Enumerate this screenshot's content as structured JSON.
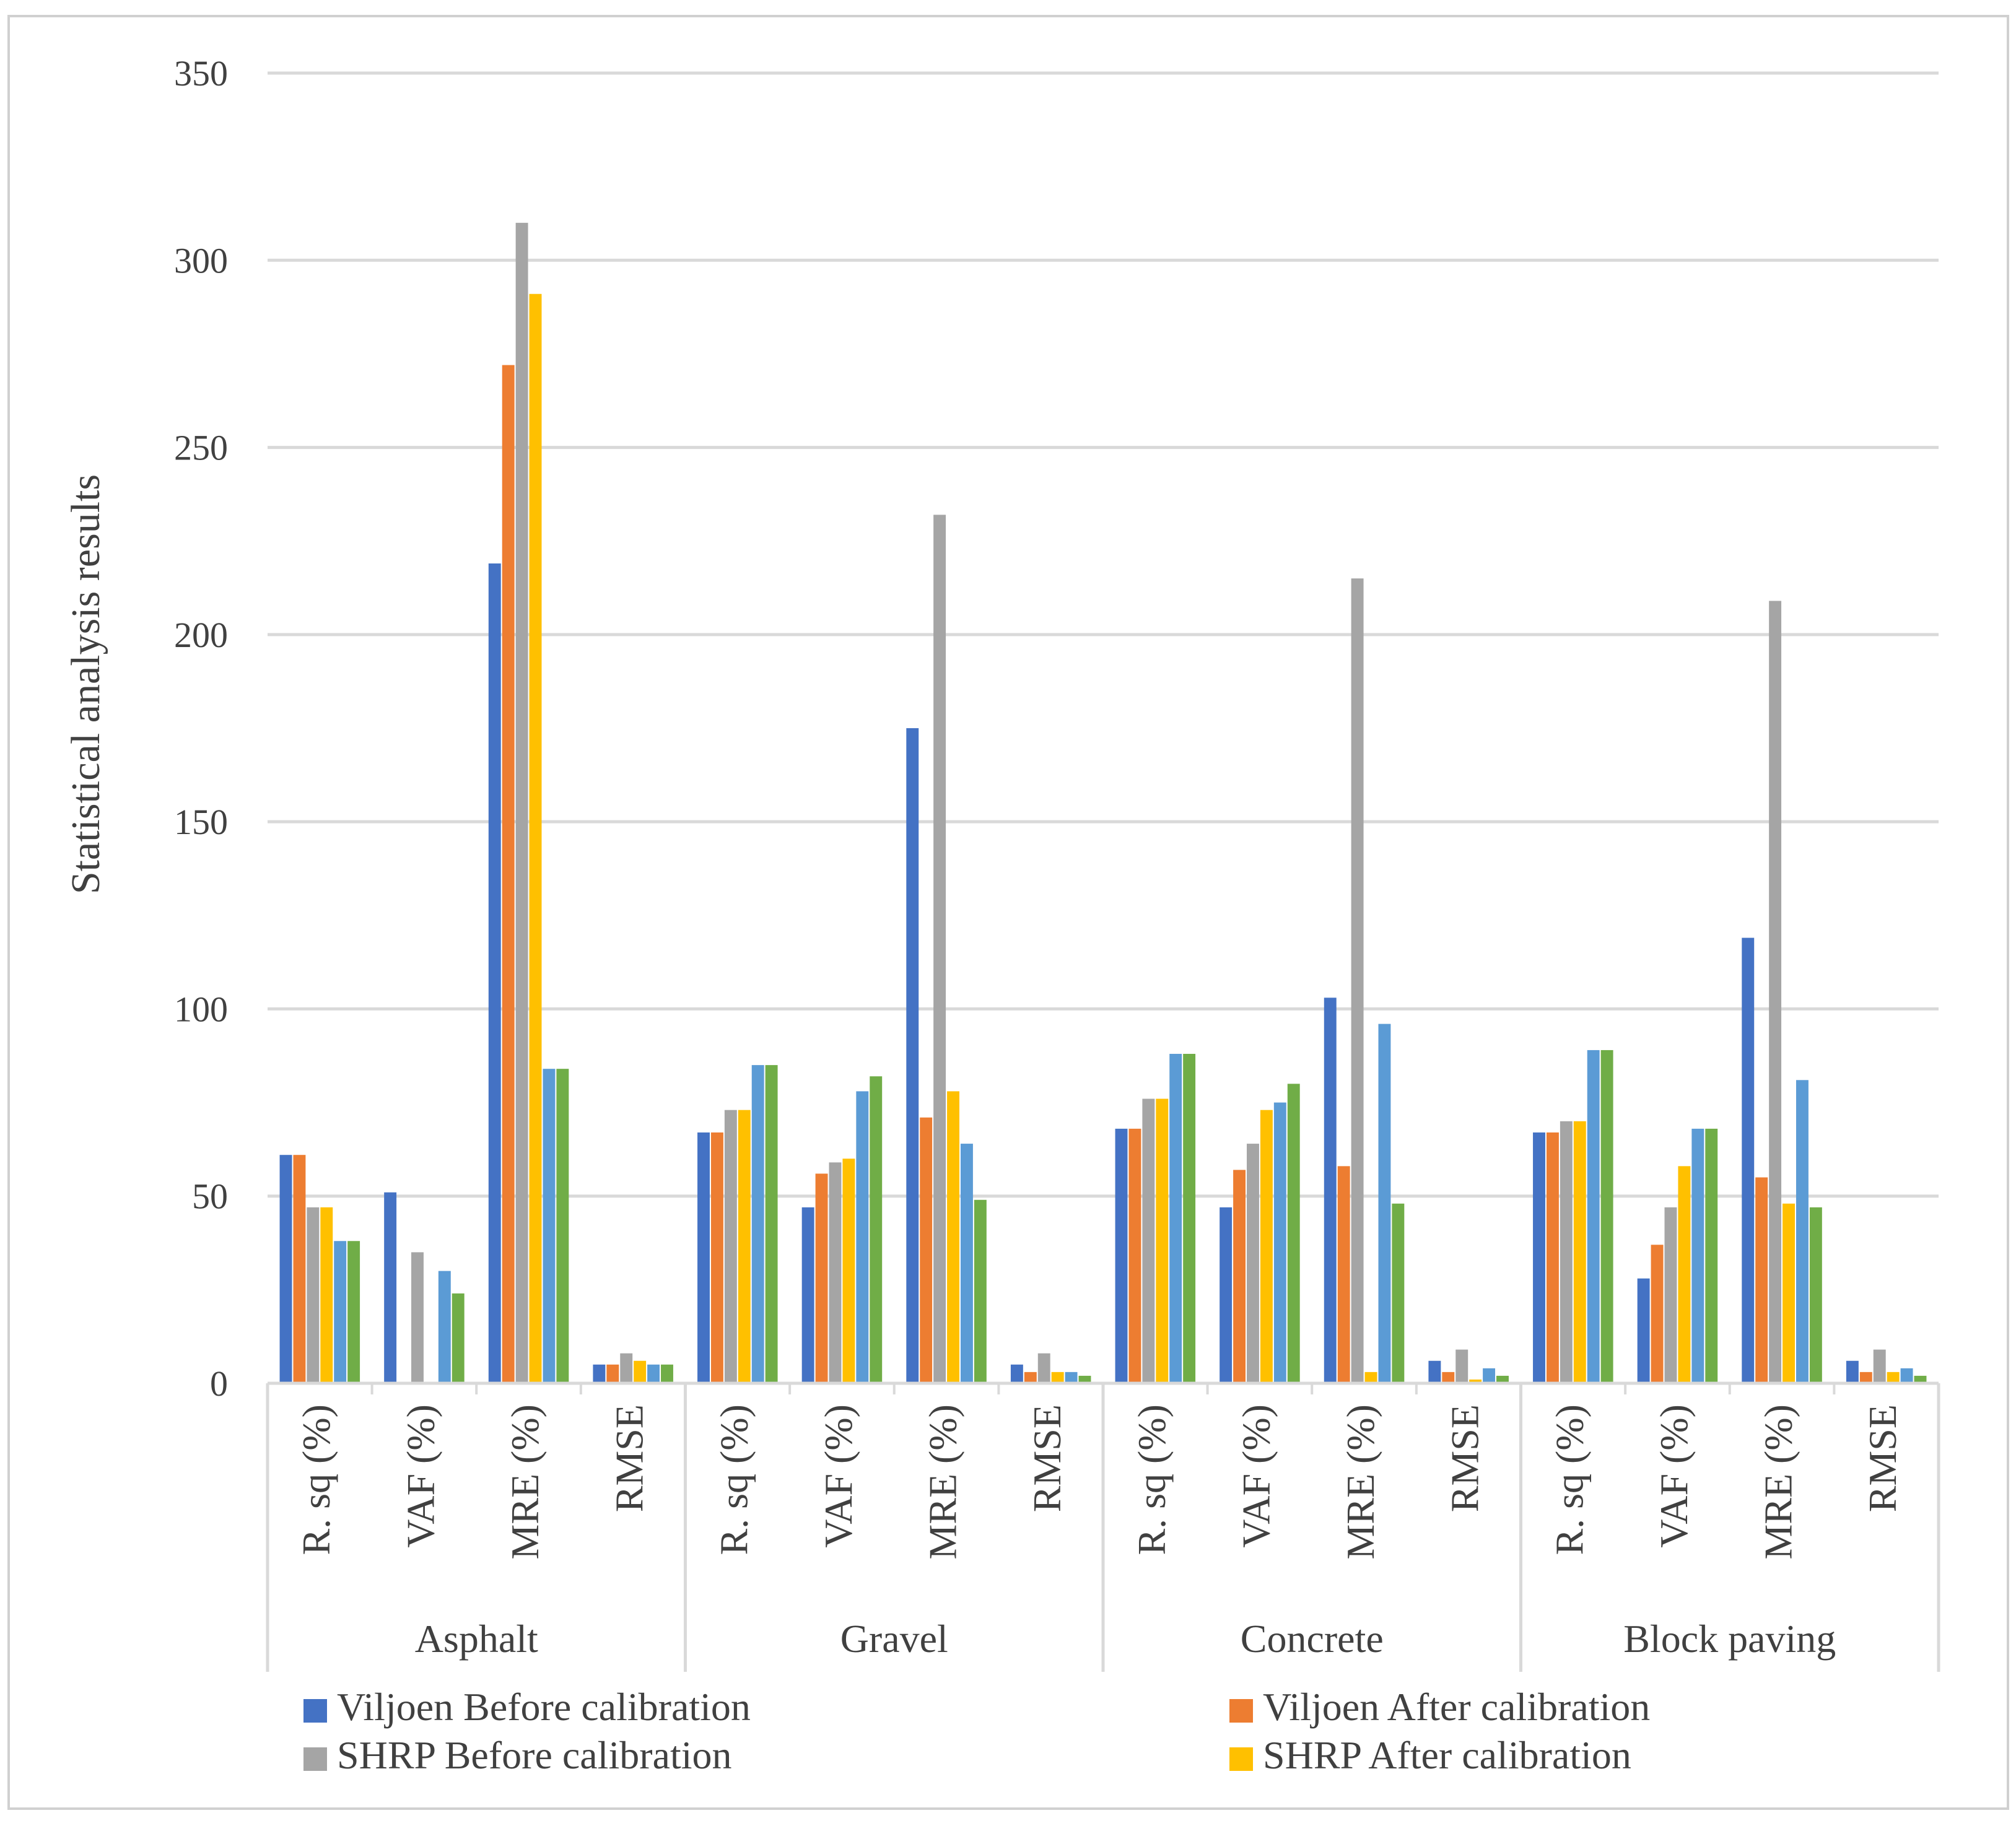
{
  "chart_data": {
    "type": "bar",
    "title": "",
    "ylabel": "Statistical analysis results",
    "xlabel": "",
    "ylim": [
      0,
      350
    ],
    "yticks": [
      0,
      50,
      100,
      150,
      200,
      250,
      300,
      350
    ],
    "grid": true,
    "legend_position": "bottom",
    "groups": [
      "Asphalt",
      "Gravel",
      "Concrete",
      "Block paving"
    ],
    "metrics": [
      "R. sq (%)",
      "VAF (%)",
      "MRE (%)",
      "RMSE"
    ],
    "series": [
      {
        "name": "Viljoen  Before calibration",
        "color": "#4472C4",
        "values": [
          61,
          51,
          219,
          5,
          67,
          47,
          175,
          5,
          68,
          47,
          103,
          6,
          67,
          28,
          119,
          6
        ]
      },
      {
        "name": "Viljoen  After calibration",
        "color": "#ED7D31",
        "values": [
          61,
          0,
          272,
          5,
          67,
          56,
          71,
          3,
          68,
          57,
          58,
          3,
          67,
          37,
          55,
          3
        ]
      },
      {
        "name": "SHRP Before calibration",
        "color": "#A5A5A5",
        "values": [
          47,
          35,
          310,
          8,
          73,
          59,
          232,
          8,
          76,
          64,
          215,
          9,
          70,
          47,
          209,
          9
        ]
      },
      {
        "name": "SHRP After calibration",
        "color": "#FFC000",
        "values": [
          47,
          0,
          291,
          6,
          73,
          60,
          78,
          3,
          76,
          73,
          3,
          1,
          70,
          58,
          48,
          3
        ]
      },
      {
        "name": "",
        "color": "#5B9BD5",
        "values": [
          38,
          30,
          84,
          5,
          85,
          78,
          64,
          3,
          88,
          75,
          96,
          4,
          89,
          68,
          81,
          4
        ]
      },
      {
        "name": "",
        "color": "#70AD47",
        "values": [
          38,
          24,
          84,
          5,
          85,
          82,
          49,
          2,
          88,
          80,
          48,
          2,
          89,
          68,
          47,
          2
        ]
      }
    ]
  }
}
